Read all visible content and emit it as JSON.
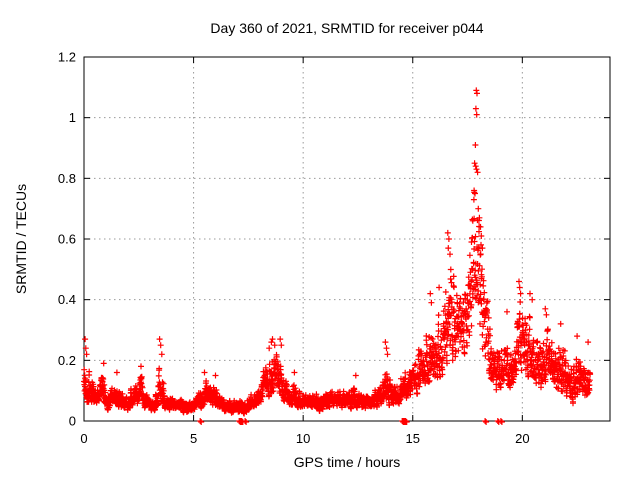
{
  "chart_data": {
    "type": "scatter",
    "title": "Day 360 of 2021, SRMTID for receiver p044",
    "xlabel": "GPS time / hours",
    "ylabel": "SRMTID / TECUs",
    "xlim": [
      0,
      24
    ],
    "ylim": [
      0,
      1.2
    ],
    "xticks": [
      0,
      5,
      10,
      15,
      20
    ],
    "yticks": [
      0,
      0.2,
      0.4,
      0.6,
      0.8,
      1,
      1.2
    ],
    "grid": true,
    "grid_color": "#999999",
    "marker": "plus",
    "marker_color": "#ff0000",
    "border_color": "#000000",
    "series_name": "SRMTID for receiver p044",
    "x_data_end": 23.1,
    "samples_per_hour": 120,
    "bias_exponent": 1.6,
    "seed": 42,
    "envelope": [
      [
        0.0,
        0.05,
        0.27
      ],
      [
        0.2,
        0.04,
        0.2
      ],
      [
        0.5,
        0.04,
        0.14
      ],
      [
        0.85,
        0.05,
        0.19
      ],
      [
        1.1,
        0.03,
        0.12
      ],
      [
        1.45,
        0.04,
        0.16
      ],
      [
        1.8,
        0.03,
        0.1
      ],
      [
        2.2,
        0.03,
        0.12
      ],
      [
        2.55,
        0.04,
        0.18
      ],
      [
        2.9,
        0.03,
        0.1
      ],
      [
        3.3,
        0.03,
        0.11
      ],
      [
        3.5,
        0.04,
        0.27
      ],
      [
        3.7,
        0.03,
        0.1
      ],
      [
        4.2,
        0.03,
        0.09
      ],
      [
        4.7,
        0.02,
        0.08
      ],
      [
        5.1,
        0.03,
        0.1
      ],
      [
        5.5,
        0.04,
        0.16
      ],
      [
        5.9,
        0.04,
        0.15
      ],
      [
        6.3,
        0.03,
        0.1
      ],
      [
        6.8,
        0.02,
        0.08
      ],
      [
        7.3,
        0.02,
        0.08
      ],
      [
        7.7,
        0.04,
        0.1
      ],
      [
        8.0,
        0.05,
        0.13
      ],
      [
        8.3,
        0.06,
        0.22
      ],
      [
        8.6,
        0.08,
        0.27
      ],
      [
        8.95,
        0.06,
        0.26
      ],
      [
        9.2,
        0.05,
        0.14
      ],
      [
        9.6,
        0.04,
        0.16
      ],
      [
        10.0,
        0.03,
        0.11
      ],
      [
        10.4,
        0.03,
        0.12
      ],
      [
        10.8,
        0.03,
        0.1
      ],
      [
        11.2,
        0.03,
        0.13
      ],
      [
        11.6,
        0.04,
        0.11
      ],
      [
        12.0,
        0.03,
        0.12
      ],
      [
        12.4,
        0.04,
        0.14
      ],
      [
        12.8,
        0.03,
        0.11
      ],
      [
        13.2,
        0.04,
        0.12
      ],
      [
        13.55,
        0.04,
        0.14
      ],
      [
        13.8,
        0.05,
        0.24
      ],
      [
        14.05,
        0.04,
        0.13
      ],
      [
        14.4,
        0.05,
        0.17
      ],
      [
        14.8,
        0.06,
        0.2
      ],
      [
        15.1,
        0.07,
        0.27
      ],
      [
        15.45,
        0.08,
        0.34
      ],
      [
        15.8,
        0.09,
        0.4
      ],
      [
        16.1,
        0.1,
        0.36
      ],
      [
        16.45,
        0.13,
        0.5
      ],
      [
        16.75,
        0.16,
        0.6
      ],
      [
        17.0,
        0.15,
        0.5
      ],
      [
        17.3,
        0.18,
        0.52
      ],
      [
        17.55,
        0.2,
        0.62
      ],
      [
        17.8,
        0.24,
        0.88
      ],
      [
        17.95,
        0.28,
        1.05
      ],
      [
        18.1,
        0.22,
        0.76
      ],
      [
        18.3,
        0.14,
        0.56
      ],
      [
        18.55,
        0.1,
        0.38
      ],
      [
        18.85,
        0.08,
        0.3
      ],
      [
        19.15,
        0.09,
        0.35
      ],
      [
        19.5,
        0.09,
        0.28
      ],
      [
        19.85,
        0.11,
        0.46
      ],
      [
        20.15,
        0.1,
        0.38
      ],
      [
        20.45,
        0.11,
        0.41
      ],
      [
        20.75,
        0.09,
        0.33
      ],
      [
        21.05,
        0.08,
        0.36
      ],
      [
        21.35,
        0.09,
        0.3
      ],
      [
        21.65,
        0.07,
        0.32
      ],
      [
        21.95,
        0.06,
        0.29
      ],
      [
        22.25,
        0.05,
        0.24
      ],
      [
        22.55,
        0.06,
        0.27
      ],
      [
        22.85,
        0.05,
        0.24
      ],
      [
        23.1,
        0.07,
        0.26
      ]
    ],
    "outlier_points": [
      [
        0.05,
        0.27
      ],
      [
        0.08,
        0.24
      ],
      [
        0.12,
        0.22
      ],
      [
        0.9,
        0.19
      ],
      [
        1.5,
        0.16
      ],
      [
        2.6,
        0.18
      ],
      [
        3.45,
        0.27
      ],
      [
        3.5,
        0.25
      ],
      [
        3.55,
        0.22
      ],
      [
        5.5,
        0.16
      ],
      [
        6.0,
        0.15
      ],
      [
        8.45,
        0.24
      ],
      [
        8.55,
        0.26
      ],
      [
        8.6,
        0.27
      ],
      [
        8.7,
        0.25
      ],
      [
        8.95,
        0.27
      ],
      [
        9.0,
        0.25
      ],
      [
        9.6,
        0.16
      ],
      [
        12.4,
        0.15
      ],
      [
        13.75,
        0.26
      ],
      [
        13.8,
        0.24
      ],
      [
        13.85,
        0.22
      ],
      [
        15.8,
        0.42
      ],
      [
        15.85,
        0.39
      ],
      [
        16.2,
        0.44
      ],
      [
        16.6,
        0.62
      ],
      [
        16.65,
        0.6
      ],
      [
        16.62,
        0.57
      ],
      [
        16.7,
        0.55
      ],
      [
        17.9,
        1.09
      ],
      [
        17.93,
        1.08
      ],
      [
        17.88,
        1.03
      ],
      [
        17.92,
        1.01
      ],
      [
        17.86,
        0.91
      ],
      [
        17.82,
        0.85
      ],
      [
        17.87,
        0.84
      ],
      [
        17.91,
        0.83
      ],
      [
        17.96,
        0.82
      ],
      [
        17.8,
        0.76
      ],
      [
        17.84,
        0.75
      ],
      [
        17.79,
        0.73
      ],
      [
        17.99,
        0.7
      ],
      [
        18.04,
        0.67
      ],
      [
        17.74,
        0.66
      ],
      [
        18.09,
        0.64
      ],
      [
        18.13,
        0.61
      ],
      [
        17.68,
        0.59
      ],
      [
        18.18,
        0.57
      ],
      [
        19.3,
        0.36
      ],
      [
        19.85,
        0.46
      ],
      [
        19.88,
        0.44
      ],
      [
        19.92,
        0.42
      ],
      [
        20.35,
        0.42
      ],
      [
        20.45,
        0.4
      ],
      [
        21.05,
        0.37
      ],
      [
        21.1,
        0.35
      ],
      [
        21.75,
        0.32
      ],
      [
        22.5,
        0.28
      ],
      [
        23.0,
        0.26
      ]
    ],
    "zero_markers": [
      5.3,
      7.08,
      7.11,
      7.14,
      7.17,
      7.2,
      7.35,
      14.52,
      14.56,
      14.6,
      14.64,
      14.68,
      18.3,
      18.88,
      19.02
    ]
  }
}
